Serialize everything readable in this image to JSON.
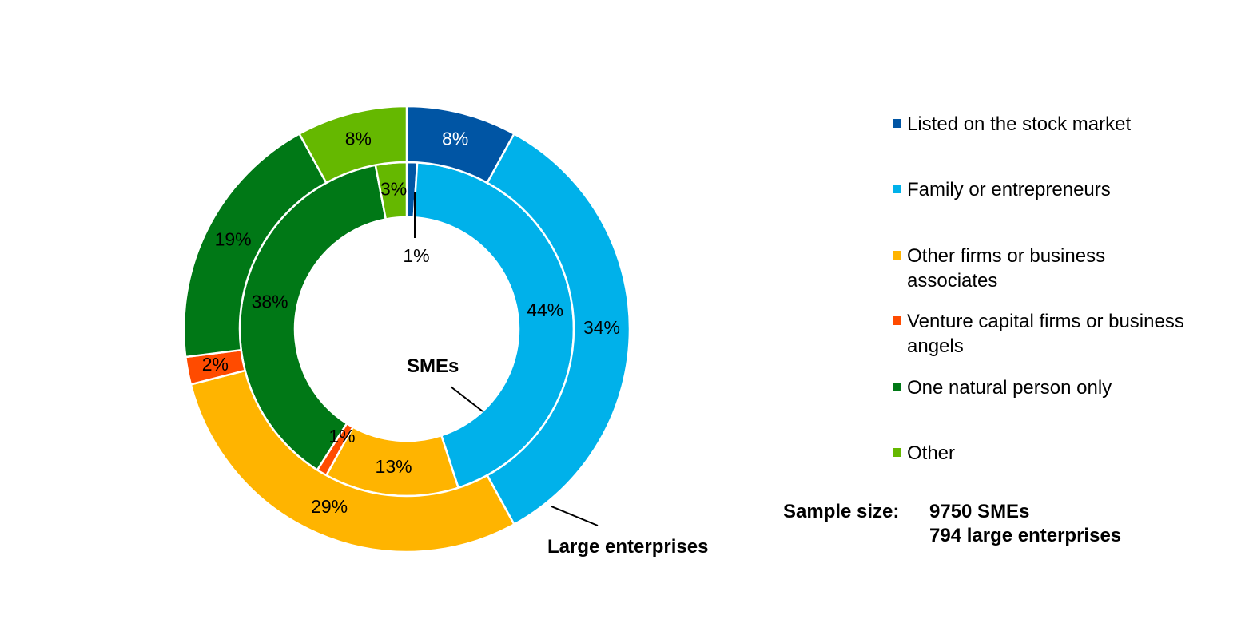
{
  "chart_data": {
    "type": "pie",
    "subtype": "double-donut",
    "categories": [
      "Listed on the stock market",
      "Family or entrepreneurs",
      "Other firms or business associates",
      "Venture capital firms or business angels",
      "One natural person only",
      "Other"
    ],
    "legend_lines": [
      [
        "Listed on the stock market"
      ],
      [
        "Family or entrepreneurs"
      ],
      [
        "Other firms or business",
        "associates"
      ],
      [
        "Venture capital firms or business",
        "angels"
      ],
      [
        "One natural person only"
      ],
      [
        "Other"
      ]
    ],
    "colors": [
      "#0055A4",
      "#00B1EA",
      "#FFB400",
      "#FF4B00",
      "#007816",
      "#65B800"
    ],
    "series": [
      {
        "name": "SMEs",
        "ring": "inner",
        "values": [
          1,
          44,
          13,
          1,
          38,
          3
        ],
        "labels": [
          "1%",
          "44%",
          "13%",
          "1%",
          "38%",
          "3%"
        ]
      },
      {
        "name": "Large enterprises",
        "ring": "outer",
        "values": [
          8,
          34,
          29,
          2,
          19,
          8
        ],
        "labels": [
          "8%",
          "34%",
          "29%",
          "2%",
          "19%",
          "8%"
        ]
      }
    ],
    "legend_position": "right",
    "sample_size": {
      "label": "Sample size:",
      "lines": [
        "9750 SMEs",
        "794 large enterprises"
      ]
    }
  }
}
